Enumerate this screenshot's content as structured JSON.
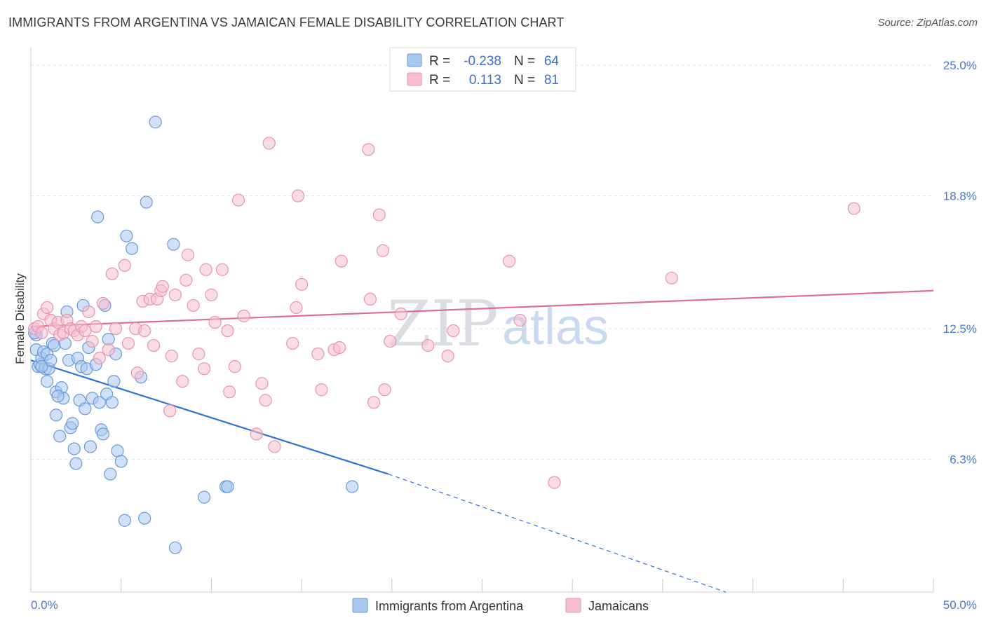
{
  "title": "IMMIGRANTS FROM ARGENTINA VS JAMAICAN FEMALE DISABILITY CORRELATION CHART",
  "source": "Source: ZipAtlas.com",
  "watermark": {
    "zip": "ZIP",
    "atlas": "atlas"
  },
  "colors": {
    "blue_fill": "#a9c8f0",
    "blue_stroke": "#6a9ad8",
    "blue_line": "#2f72d4",
    "pink_fill": "#f6bfd0",
    "pink_stroke": "#e894b0",
    "pink_line": "#e06b93",
    "grid": "#e3e3e3",
    "axis_text": "#4a78c8"
  },
  "legend": {
    "rows": [
      {
        "r_label": "R =",
        "r_value": "-0.238",
        "n_label": "N =",
        "n_value": "64",
        "series": "blue"
      },
      {
        "r_label": "R =",
        "r_value": "0.113",
        "n_label": "N =",
        "n_value": "81",
        "series": "pink"
      }
    ]
  },
  "chart_data": {
    "type": "scatter",
    "title": "IMMIGRANTS FROM ARGENTINA VS JAMAICAN FEMALE DISABILITY CORRELATION CHART",
    "xlabel": "",
    "ylabel": "Female Disability",
    "xlim": [
      0,
      50
    ],
    "ylim": [
      0,
      25.5
    ],
    "x_tick_labels": [
      "0.0%",
      "50.0%"
    ],
    "y_ticks": [
      6.3,
      12.5,
      18.8,
      25.0
    ],
    "y_tick_labels": [
      "6.3%",
      "12.5%",
      "18.8%",
      "25.0%"
    ],
    "x_minor_ticks": [
      0,
      5,
      10,
      15,
      20,
      25,
      30,
      35,
      40,
      45,
      50
    ],
    "grid": true,
    "legend_position": "top-center",
    "series": [
      {
        "name": "Immigrants from Argentina",
        "color": "blue",
        "trend": {
          "x0": 0,
          "y0": 11.0,
          "x1": 19.8,
          "y1": 5.6,
          "dashed_to_x": 38.5,
          "dashed_to_y": 0
        },
        "points": [
          [
            0.3,
            12.2
          ],
          [
            0.3,
            11.5
          ],
          [
            0.4,
            10.7
          ],
          [
            0.5,
            10.8
          ],
          [
            0.6,
            11.1
          ],
          [
            0.7,
            11.4
          ],
          [
            0.8,
            10.6
          ],
          [
            0.9,
            10.0
          ],
          [
            0.9,
            11.3
          ],
          [
            1.0,
            10.6
          ],
          [
            1.1,
            11.0
          ],
          [
            1.2,
            11.8
          ],
          [
            1.3,
            11.7
          ],
          [
            1.4,
            8.4
          ],
          [
            1.4,
            9.5
          ],
          [
            1.6,
            7.4
          ],
          [
            1.7,
            9.7
          ],
          [
            1.8,
            9.2
          ],
          [
            1.9,
            11.8
          ],
          [
            2.0,
            13.3
          ],
          [
            2.1,
            11.0
          ],
          [
            2.2,
            7.8
          ],
          [
            2.3,
            8.0
          ],
          [
            2.4,
            6.8
          ],
          [
            2.5,
            6.1
          ],
          [
            2.6,
            11.1
          ],
          [
            2.7,
            9.1
          ],
          [
            2.8,
            10.7
          ],
          [
            2.9,
            13.6
          ],
          [
            3.0,
            8.7
          ],
          [
            3.1,
            10.6
          ],
          [
            3.2,
            11.6
          ],
          [
            3.3,
            6.9
          ],
          [
            3.4,
            9.2
          ],
          [
            3.6,
            10.8
          ],
          [
            3.7,
            17.8
          ],
          [
            3.8,
            9.0
          ],
          [
            3.9,
            7.7
          ],
          [
            4.0,
            7.5
          ],
          [
            4.1,
            13.6
          ],
          [
            4.2,
            9.4
          ],
          [
            4.3,
            12.0
          ],
          [
            4.4,
            5.6
          ],
          [
            4.5,
            9.0
          ],
          [
            4.6,
            10.0
          ],
          [
            4.7,
            11.3
          ],
          [
            4.8,
            6.7
          ],
          [
            5.0,
            6.2
          ],
          [
            5.2,
            3.4
          ],
          [
            5.3,
            16.9
          ],
          [
            5.6,
            16.3
          ],
          [
            6.1,
            10.2
          ],
          [
            6.3,
            3.5
          ],
          [
            6.4,
            18.5
          ],
          [
            6.9,
            22.3
          ],
          [
            7.9,
            16.5
          ],
          [
            8.0,
            2.1
          ],
          [
            9.6,
            4.5
          ],
          [
            10.8,
            5.0
          ],
          [
            10.9,
            5.0
          ],
          [
            17.8,
            5.0
          ],
          [
            0.2,
            12.3
          ],
          [
            0.6,
            10.7
          ],
          [
            1.5,
            9.3
          ]
        ]
      },
      {
        "name": "Jamaicans",
        "color": "pink",
        "trend": {
          "x0": 0,
          "y0": 12.6,
          "x1": 50,
          "y1": 14.3
        },
        "points": [
          [
            0.2,
            12.5
          ],
          [
            0.4,
            12.6
          ],
          [
            0.6,
            12.3
          ],
          [
            0.7,
            13.2
          ],
          [
            0.9,
            13.5
          ],
          [
            1.1,
            12.9
          ],
          [
            1.3,
            12.5
          ],
          [
            1.5,
            12.8
          ],
          [
            1.6,
            12.2
          ],
          [
            1.8,
            12.3
          ],
          [
            2.0,
            12.9
          ],
          [
            2.2,
            12.5
          ],
          [
            2.4,
            12.4
          ],
          [
            2.6,
            12.2
          ],
          [
            2.8,
            12.6
          ],
          [
            3.0,
            12.4
          ],
          [
            3.2,
            13.3
          ],
          [
            3.4,
            11.9
          ],
          [
            3.6,
            12.6
          ],
          [
            3.8,
            11.1
          ],
          [
            4.0,
            13.7
          ],
          [
            4.3,
            11.5
          ],
          [
            4.5,
            15.1
          ],
          [
            4.7,
            12.5
          ],
          [
            5.2,
            15.5
          ],
          [
            5.4,
            11.8
          ],
          [
            5.8,
            12.5
          ],
          [
            5.9,
            10.4
          ],
          [
            6.2,
            13.8
          ],
          [
            6.3,
            12.4
          ],
          [
            6.6,
            13.9
          ],
          [
            6.8,
            11.7
          ],
          [
            7.0,
            13.9
          ],
          [
            7.2,
            14.3
          ],
          [
            7.3,
            14.5
          ],
          [
            7.7,
            8.6
          ],
          [
            7.8,
            11.2
          ],
          [
            8.0,
            14.1
          ],
          [
            8.4,
            10.0
          ],
          [
            8.6,
            14.8
          ],
          [
            8.7,
            16.0
          ],
          [
            9.0,
            13.6
          ],
          [
            9.3,
            11.3
          ],
          [
            9.6,
            10.6
          ],
          [
            9.7,
            15.3
          ],
          [
            10.0,
            14.1
          ],
          [
            10.2,
            12.8
          ],
          [
            10.6,
            15.3
          ],
          [
            10.9,
            12.4
          ],
          [
            11.0,
            9.5
          ],
          [
            11.3,
            10.7
          ],
          [
            11.5,
            18.6
          ],
          [
            11.8,
            13.1
          ],
          [
            12.5,
            7.5
          ],
          [
            12.8,
            9.9
          ],
          [
            13.0,
            9.1
          ],
          [
            13.2,
            21.3
          ],
          [
            13.5,
            6.9
          ],
          [
            14.5,
            11.8
          ],
          [
            14.7,
            13.5
          ],
          [
            14.8,
            18.8
          ],
          [
            15.0,
            14.6
          ],
          [
            15.9,
            11.3
          ],
          [
            16.1,
            9.6
          ],
          [
            16.8,
            11.5
          ],
          [
            17.1,
            11.6
          ],
          [
            17.2,
            15.7
          ],
          [
            18.7,
            21.0
          ],
          [
            18.8,
            13.9
          ],
          [
            19.0,
            9.0
          ],
          [
            19.3,
            17.9
          ],
          [
            19.5,
            16.2
          ],
          [
            19.6,
            9.6
          ],
          [
            19.9,
            11.9
          ],
          [
            20.5,
            13.2
          ],
          [
            22.0,
            11.7
          ],
          [
            23.1,
            11.2
          ],
          [
            23.4,
            12.4
          ],
          [
            26.5,
            15.7
          ],
          [
            27.1,
            12.9
          ],
          [
            29.0,
            5.2
          ],
          [
            35.5,
            14.9
          ],
          [
            45.6,
            18.2
          ]
        ]
      }
    ]
  },
  "bottom_legend": [
    {
      "label": "Immigrants from Argentina",
      "series": "blue"
    },
    {
      "label": "Jamaicans",
      "series": "pink"
    }
  ]
}
